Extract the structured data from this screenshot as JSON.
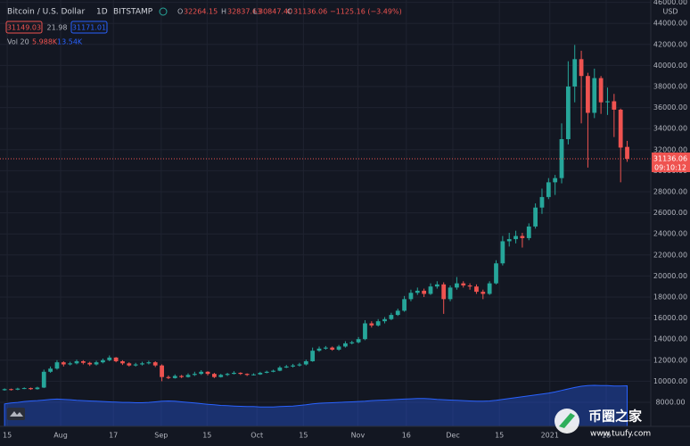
{
  "header": {
    "title": "Bitcoin / U.S. Dollar",
    "interval": "1D",
    "exchange": "BITSTAMP",
    "o": "O",
    "open": "32264.15",
    "h": "H",
    "high": "32837.63",
    "l": "L",
    "low": "30847.40",
    "c": "C",
    "close": "31136.06",
    "change": "−1125.16 (−3.49%)",
    "bid": "31149.03",
    "spread": "21.98",
    "ask": "31171.01",
    "vol_name": "Vol 20",
    "vol_value": "5.988K",
    "vol_ma": "13.54K"
  },
  "chart_data": {
    "type": "candlestick",
    "currency": "USD",
    "up_color": "#26a69a",
    "down_color": "#ef5350",
    "grid": true,
    "open": [
      9150,
      9250,
      9200,
      9300,
      9350,
      9250,
      9400,
      10900,
      11200,
      11800,
      11600,
      11700,
      11900,
      11750,
      11600,
      11800,
      12000,
      12250,
      11900,
      11700,
      11500,
      11600,
      11700,
      11800,
      11500,
      10400,
      10300,
      10500,
      10400,
      10600,
      10700,
      10900,
      10700,
      10400,
      10600,
      10700,
      10800,
      10700,
      10600,
      10650,
      10800,
      10900,
      11000,
      11300,
      11400,
      11500,
      11600,
      11900,
      12900,
      13100,
      13200,
      13000,
      13300,
      13600,
      13700,
      14000,
      15500,
      15300,
      15700,
      15900,
      16300,
      16700,
      17800,
      18400,
      18600,
      18300,
      19000,
      19200,
      17800,
      18900,
      19300,
      19100,
      19000,
      18500,
      18300,
      19300,
      21200,
      23300,
      23500,
      23800,
      23600,
      24700,
      26500,
      27500,
      28900,
      29300,
      33000,
      38000,
      40600,
      39000,
      35500,
      38800,
      36500,
      36600,
      35800,
      32264.15
    ],
    "high": [
      9320,
      9300,
      9380,
      9420,
      9400,
      9480,
      11100,
      11400,
      12000,
      11900,
      11850,
      12050,
      12000,
      11850,
      11950,
      12150,
      12450,
      12300,
      12000,
      11800,
      11750,
      11850,
      11950,
      11900,
      11600,
      10550,
      10650,
      10600,
      10750,
      10900,
      11050,
      10950,
      10800,
      10700,
      10800,
      10950,
      10850,
      10750,
      10750,
      10900,
      11000,
      11100,
      11450,
      11550,
      11650,
      11750,
      12050,
      13200,
      13300,
      13350,
      13300,
      13450,
      13800,
      13850,
      14200,
      15800,
      15700,
      15900,
      16100,
      16500,
      16900,
      18100,
      18700,
      18900,
      18800,
      19300,
      19500,
      19400,
      19100,
      19900,
      19500,
      19300,
      19200,
      18700,
      19500,
      21500,
      23800,
      24100,
      24300,
      24100,
      25000,
      26900,
      28300,
      29300,
      29600,
      34500,
      40400,
      41950,
      41400,
      39300,
      39700,
      39000,
      37900,
      37300,
      35900,
      32837.63
    ],
    "low": [
      9100,
      9120,
      9150,
      9250,
      9180,
      9200,
      9350,
      10800,
      11100,
      11400,
      11500,
      11600,
      11600,
      11450,
      11500,
      11700,
      11900,
      11800,
      11550,
      11400,
      11400,
      11500,
      11600,
      11350,
      10000,
      10200,
      10250,
      10300,
      10350,
      10500,
      10600,
      10550,
      10300,
      10350,
      10500,
      10650,
      10600,
      10500,
      10550,
      10600,
      10750,
      10850,
      10950,
      11250,
      11300,
      11400,
      11500,
      11850,
      12800,
      13000,
      12900,
      12900,
      13200,
      13500,
      13600,
      13900,
      15100,
      15200,
      15500,
      15800,
      16200,
      16600,
      17600,
      18200,
      18000,
      18200,
      18800,
      16400,
      17600,
      18700,
      18900,
      18700,
      18300,
      17800,
      18200,
      19200,
      21000,
      22800,
      23100,
      22700,
      23400,
      24500,
      25900,
      27300,
      27700,
      28800,
      32500,
      36500,
      34500,
      30300,
      35000,
      35400,
      35300,
      33200,
      28900,
      30847.4
    ],
    "close": [
      9250,
      9200,
      9300,
      9350,
      9250,
      9400,
      10900,
      11200,
      11800,
      11600,
      11700,
      11900,
      11750,
      11600,
      11800,
      12000,
      12250,
      11900,
      11700,
      11500,
      11600,
      11700,
      11800,
      11500,
      10400,
      10300,
      10500,
      10400,
      10600,
      10700,
      10900,
      10700,
      10400,
      10600,
      10700,
      10800,
      10700,
      10600,
      10650,
      10800,
      10900,
      11000,
      11300,
      11400,
      11500,
      11600,
      11900,
      12900,
      13100,
      13200,
      13000,
      13300,
      13600,
      13700,
      14000,
      15500,
      15300,
      15700,
      15900,
      16300,
      16700,
      17800,
      18400,
      18600,
      18300,
      19000,
      19200,
      17800,
      18900,
      19300,
      19100,
      19000,
      18500,
      18300,
      19300,
      21200,
      23300,
      23500,
      23800,
      23600,
      24700,
      26500,
      27500,
      28900,
      29300,
      33000,
      38000,
      40600,
      39000,
      35500,
      38800,
      36500,
      36600,
      35800,
      32200,
      31136.06
    ],
    "volume": {
      "name": "Vol 20",
      "color": "#2962ff",
      "values": [
        7.5,
        7.8,
        8.0,
        8.3,
        8.5,
        8.6,
        8.8,
        9.0,
        9.1,
        9.0,
        8.9,
        8.7,
        8.6,
        8.5,
        8.4,
        8.3,
        8.2,
        8.1,
        8.0,
        8.0,
        7.9,
        7.9,
        8.0,
        8.2,
        8.4,
        8.5,
        8.4,
        8.2,
        8.0,
        7.8,
        7.6,
        7.4,
        7.2,
        7.0,
        6.9,
        6.8,
        6.7,
        6.6,
        6.6,
        6.5,
        6.5,
        6.5,
        6.6,
        6.7,
        6.8,
        7.0,
        7.2,
        7.5,
        7.7,
        7.8,
        7.9,
        8.0,
        8.1,
        8.2,
        8.3,
        8.4,
        8.6,
        8.7,
        8.8,
        8.9,
        9.0,
        9.1,
        9.2,
        9.3,
        9.3,
        9.2,
        9.0,
        8.9,
        8.8,
        8.7,
        8.6,
        8.5,
        8.4,
        8.4,
        8.5,
        8.7,
        9.0,
        9.3,
        9.6,
        9.9,
        10.2,
        10.5,
        10.8,
        11.1,
        11.5,
        12.0,
        12.5,
        13.0,
        13.4,
        13.6,
        13.7,
        13.6,
        13.6,
        13.5,
        13.5,
        13.54
      ],
      "vlim": [
        0,
        14
      ]
    },
    "xlim": [
      -0.7,
      98.6
    ],
    "xticks": [
      {
        "value": 0.4,
        "label": "15"
      },
      {
        "value": 8.55,
        "label": "Aug"
      },
      {
        "value": 16.6,
        "label": "17"
      },
      {
        "value": 23.9,
        "label": "Sep"
      },
      {
        "value": 30.9,
        "label": "15"
      },
      {
        "value": 38.5,
        "label": "Oct"
      },
      {
        "value": 45.6,
        "label": "15"
      },
      {
        "value": 53.9,
        "label": "Nov"
      },
      {
        "value": 61.3,
        "label": "16"
      },
      {
        "value": 68.4,
        "label": "Dec"
      },
      {
        "value": 75.5,
        "label": "15"
      },
      {
        "value": 83.2,
        "label": "2021"
      },
      {
        "value": 91.8,
        "label": "18"
      }
    ],
    "ylim": [
      5712,
      46220
    ],
    "yticks": [
      {
        "value": 8000,
        "label": "8000.00"
      },
      {
        "value": 10000,
        "label": "10000.00"
      },
      {
        "value": 12000,
        "label": "12000.00"
      },
      {
        "value": 14000,
        "label": "14000.00"
      },
      {
        "value": 16000,
        "label": "16000.00"
      },
      {
        "value": 18000,
        "label": "18000.00"
      },
      {
        "value": 20000,
        "label": "20000.00"
      },
      {
        "value": 22000,
        "label": "22000.00"
      },
      {
        "value": 24000,
        "label": "24000.00"
      },
      {
        "value": 26000,
        "label": "26000.00"
      },
      {
        "value": 28000,
        "label": "28000.00"
      },
      {
        "value": 30000,
        "label": "30000.00"
      },
      {
        "value": 32000,
        "label": "32000.00"
      },
      {
        "value": 34000,
        "label": "34000.00"
      },
      {
        "value": 36000,
        "label": "36000.00"
      },
      {
        "value": 38000,
        "label": "38000.00"
      },
      {
        "value": 40000,
        "label": "40000.00"
      },
      {
        "value": 42000,
        "label": "42000.00"
      },
      {
        "value": 44000,
        "label": "44000.00"
      },
      {
        "value": 46000,
        "label": "46000.00"
      }
    ],
    "last_price": {
      "label": "31136.06",
      "countdown": "09:10:12"
    }
  },
  "watermark": {
    "name": "币圈之家",
    "url": "www.tuufy.com"
  }
}
